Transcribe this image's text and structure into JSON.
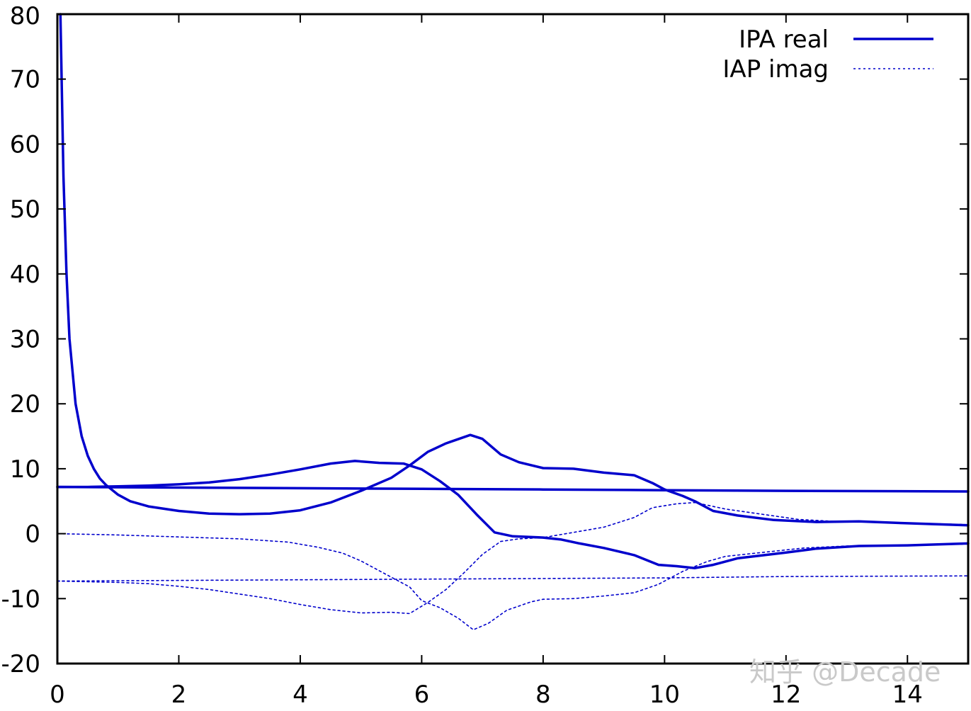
{
  "colors": {
    "series": "#0000cc",
    "axis": "#000000",
    "watermark": "#c9c9c9"
  },
  "watermark": "知乎 @Decade",
  "chart_data": {
    "type": "line",
    "title": "",
    "xlabel": "",
    "ylabel": "",
    "xlim": [
      0,
      15
    ],
    "ylim": [
      -20,
      80
    ],
    "xticks": [
      0,
      2,
      4,
      6,
      8,
      10,
      12,
      14
    ],
    "yticks": [
      -20,
      -10,
      0,
      10,
      20,
      30,
      40,
      50,
      60,
      70,
      80
    ],
    "grid": false,
    "legend_position": "top-right",
    "legend": [
      {
        "label": "IPA real",
        "style": "solid"
      },
      {
        "label": "IAP imag",
        "style": "dotted"
      }
    ],
    "series": [
      {
        "style": "solid",
        "points": [
          [
            0.05,
            80
          ],
          [
            0.1,
            55
          ],
          [
            0.15,
            40
          ],
          [
            0.2,
            30
          ],
          [
            0.3,
            20
          ],
          [
            0.4,
            15
          ],
          [
            0.5,
            12
          ],
          [
            0.6,
            10
          ],
          [
            0.7,
            8.5
          ],
          [
            0.8,
            7.5
          ],
          [
            1.0,
            6
          ],
          [
            1.2,
            5
          ],
          [
            1.5,
            4.2
          ],
          [
            2.0,
            3.5
          ],
          [
            2.5,
            3.1
          ],
          [
            3.0,
            3.0
          ],
          [
            3.5,
            3.1
          ],
          [
            4.0,
            3.6
          ],
          [
            4.5,
            4.8
          ],
          [
            5.0,
            6.6
          ],
          [
            5.5,
            8.6
          ],
          [
            5.8,
            10.5
          ],
          [
            6.1,
            12.6
          ],
          [
            6.4,
            13.9
          ],
          [
            6.8,
            15.2
          ],
          [
            7.0,
            14.6
          ],
          [
            7.3,
            12.2
          ],
          [
            7.6,
            11
          ],
          [
            8.0,
            10.1
          ],
          [
            8.5,
            10.0
          ],
          [
            9.0,
            9.4
          ],
          [
            9.5,
            9.0
          ],
          [
            9.8,
            7.8
          ],
          [
            10.0,
            6.8
          ],
          [
            10.3,
            5.8
          ],
          [
            10.5,
            5
          ],
          [
            10.8,
            3.5
          ],
          [
            11.2,
            2.8
          ],
          [
            11.8,
            2.1
          ],
          [
            12.5,
            1.8
          ],
          [
            13.2,
            1.9
          ],
          [
            14.0,
            1.6
          ],
          [
            15.0,
            1.3
          ]
        ]
      },
      {
        "style": "solid",
        "points": [
          [
            0,
            7.2
          ],
          [
            2,
            7.1
          ],
          [
            4,
            7.0
          ],
          [
            6,
            6.9
          ],
          [
            8,
            6.8
          ],
          [
            10,
            6.7
          ],
          [
            12,
            6.6
          ],
          [
            15,
            6.5
          ]
        ]
      },
      {
        "style": "solid",
        "points": [
          [
            0,
            7.2
          ],
          [
            0.5,
            7.2
          ],
          [
            1.0,
            7.3
          ],
          [
            1.5,
            7.4
          ],
          [
            2.0,
            7.6
          ],
          [
            2.5,
            7.9
          ],
          [
            3.0,
            8.4
          ],
          [
            3.5,
            9.1
          ],
          [
            4.0,
            9.9
          ],
          [
            4.5,
            10.8
          ],
          [
            4.9,
            11.2
          ],
          [
            5.3,
            10.9
          ],
          [
            5.7,
            10.8
          ],
          [
            6.0,
            9.9
          ],
          [
            6.3,
            8.1
          ],
          [
            6.6,
            6.0
          ],
          [
            6.9,
            3.0
          ],
          [
            7.2,
            0.2
          ],
          [
            7.5,
            -0.4
          ],
          [
            8.0,
            -0.6
          ],
          [
            8.3,
            -0.9
          ],
          [
            8.6,
            -1.5
          ],
          [
            9.0,
            -2.2
          ],
          [
            9.5,
            -3.3
          ],
          [
            9.9,
            -4.8
          ],
          [
            10.2,
            -5.0
          ],
          [
            10.5,
            -5.3
          ],
          [
            10.8,
            -4.8
          ],
          [
            11.2,
            -3.8
          ],
          [
            12.0,
            -2.9
          ],
          [
            12.5,
            -2.3
          ],
          [
            13.2,
            -1.9
          ],
          [
            14.0,
            -1.8
          ],
          [
            15.0,
            -1.5
          ]
        ]
      },
      {
        "style": "dotted",
        "points": [
          [
            0,
            0
          ],
          [
            1.0,
            -0.2
          ],
          [
            2.0,
            -0.5
          ],
          [
            3.0,
            -0.8
          ],
          [
            3.8,
            -1.3
          ],
          [
            4.3,
            -2.1
          ],
          [
            4.7,
            -3.0
          ],
          [
            5.0,
            -4.2
          ],
          [
            5.4,
            -6.2
          ],
          [
            5.8,
            -8.2
          ],
          [
            6.0,
            -10.3
          ],
          [
            6.3,
            -11.4
          ],
          [
            6.6,
            -13.0
          ],
          [
            6.85,
            -14.8
          ],
          [
            7.1,
            -13.8
          ],
          [
            7.4,
            -11.8
          ],
          [
            7.8,
            -10.5
          ],
          [
            8.0,
            -10.1
          ],
          [
            8.5,
            -10.0
          ],
          [
            9.0,
            -9.6
          ],
          [
            9.5,
            -9.1
          ],
          [
            9.9,
            -7.8
          ],
          [
            10.3,
            -5.8
          ],
          [
            10.7,
            -4.3
          ],
          [
            11.0,
            -3.5
          ],
          [
            11.6,
            -2.9
          ],
          [
            12.3,
            -2.2
          ],
          [
            13.0,
            -1.9
          ],
          [
            14.0,
            -1.8
          ],
          [
            15.0,
            -1.6
          ]
        ]
      },
      {
        "style": "dotted",
        "points": [
          [
            0,
            -7.3
          ],
          [
            2,
            -7.2
          ],
          [
            4,
            -7.1
          ],
          [
            6,
            -7.0
          ],
          [
            8,
            -6.9
          ],
          [
            10,
            -6.8
          ],
          [
            12,
            -6.6
          ],
          [
            15,
            -6.5
          ]
        ]
      },
      {
        "style": "dotted",
        "points": [
          [
            0,
            -7.3
          ],
          [
            0.5,
            -7.4
          ],
          [
            1.0,
            -7.5
          ],
          [
            1.5,
            -7.7
          ],
          [
            2.0,
            -8.1
          ],
          [
            2.5,
            -8.6
          ],
          [
            3.0,
            -9.3
          ],
          [
            3.5,
            -10.0
          ],
          [
            4.0,
            -10.9
          ],
          [
            4.5,
            -11.7
          ],
          [
            5.0,
            -12.2
          ],
          [
            5.5,
            -12.1
          ],
          [
            5.8,
            -12.3
          ],
          [
            6.1,
            -10.6
          ],
          [
            6.4,
            -8.6
          ],
          [
            6.7,
            -6.0
          ],
          [
            7.0,
            -3.2
          ],
          [
            7.3,
            -1.2
          ],
          [
            7.6,
            -0.8
          ],
          [
            8.0,
            -0.6
          ],
          [
            8.5,
            0.2
          ],
          [
            9.0,
            1.0
          ],
          [
            9.5,
            2.5
          ],
          [
            9.8,
            4.0
          ],
          [
            10.2,
            4.6
          ],
          [
            10.5,
            4.8
          ],
          [
            11.0,
            3.8
          ],
          [
            11.6,
            3.0
          ],
          [
            12.2,
            2.2
          ],
          [
            12.8,
            1.9
          ],
          [
            13.5,
            1.8
          ],
          [
            14.2,
            1.6
          ],
          [
            15.0,
            1.4
          ]
        ]
      }
    ]
  }
}
